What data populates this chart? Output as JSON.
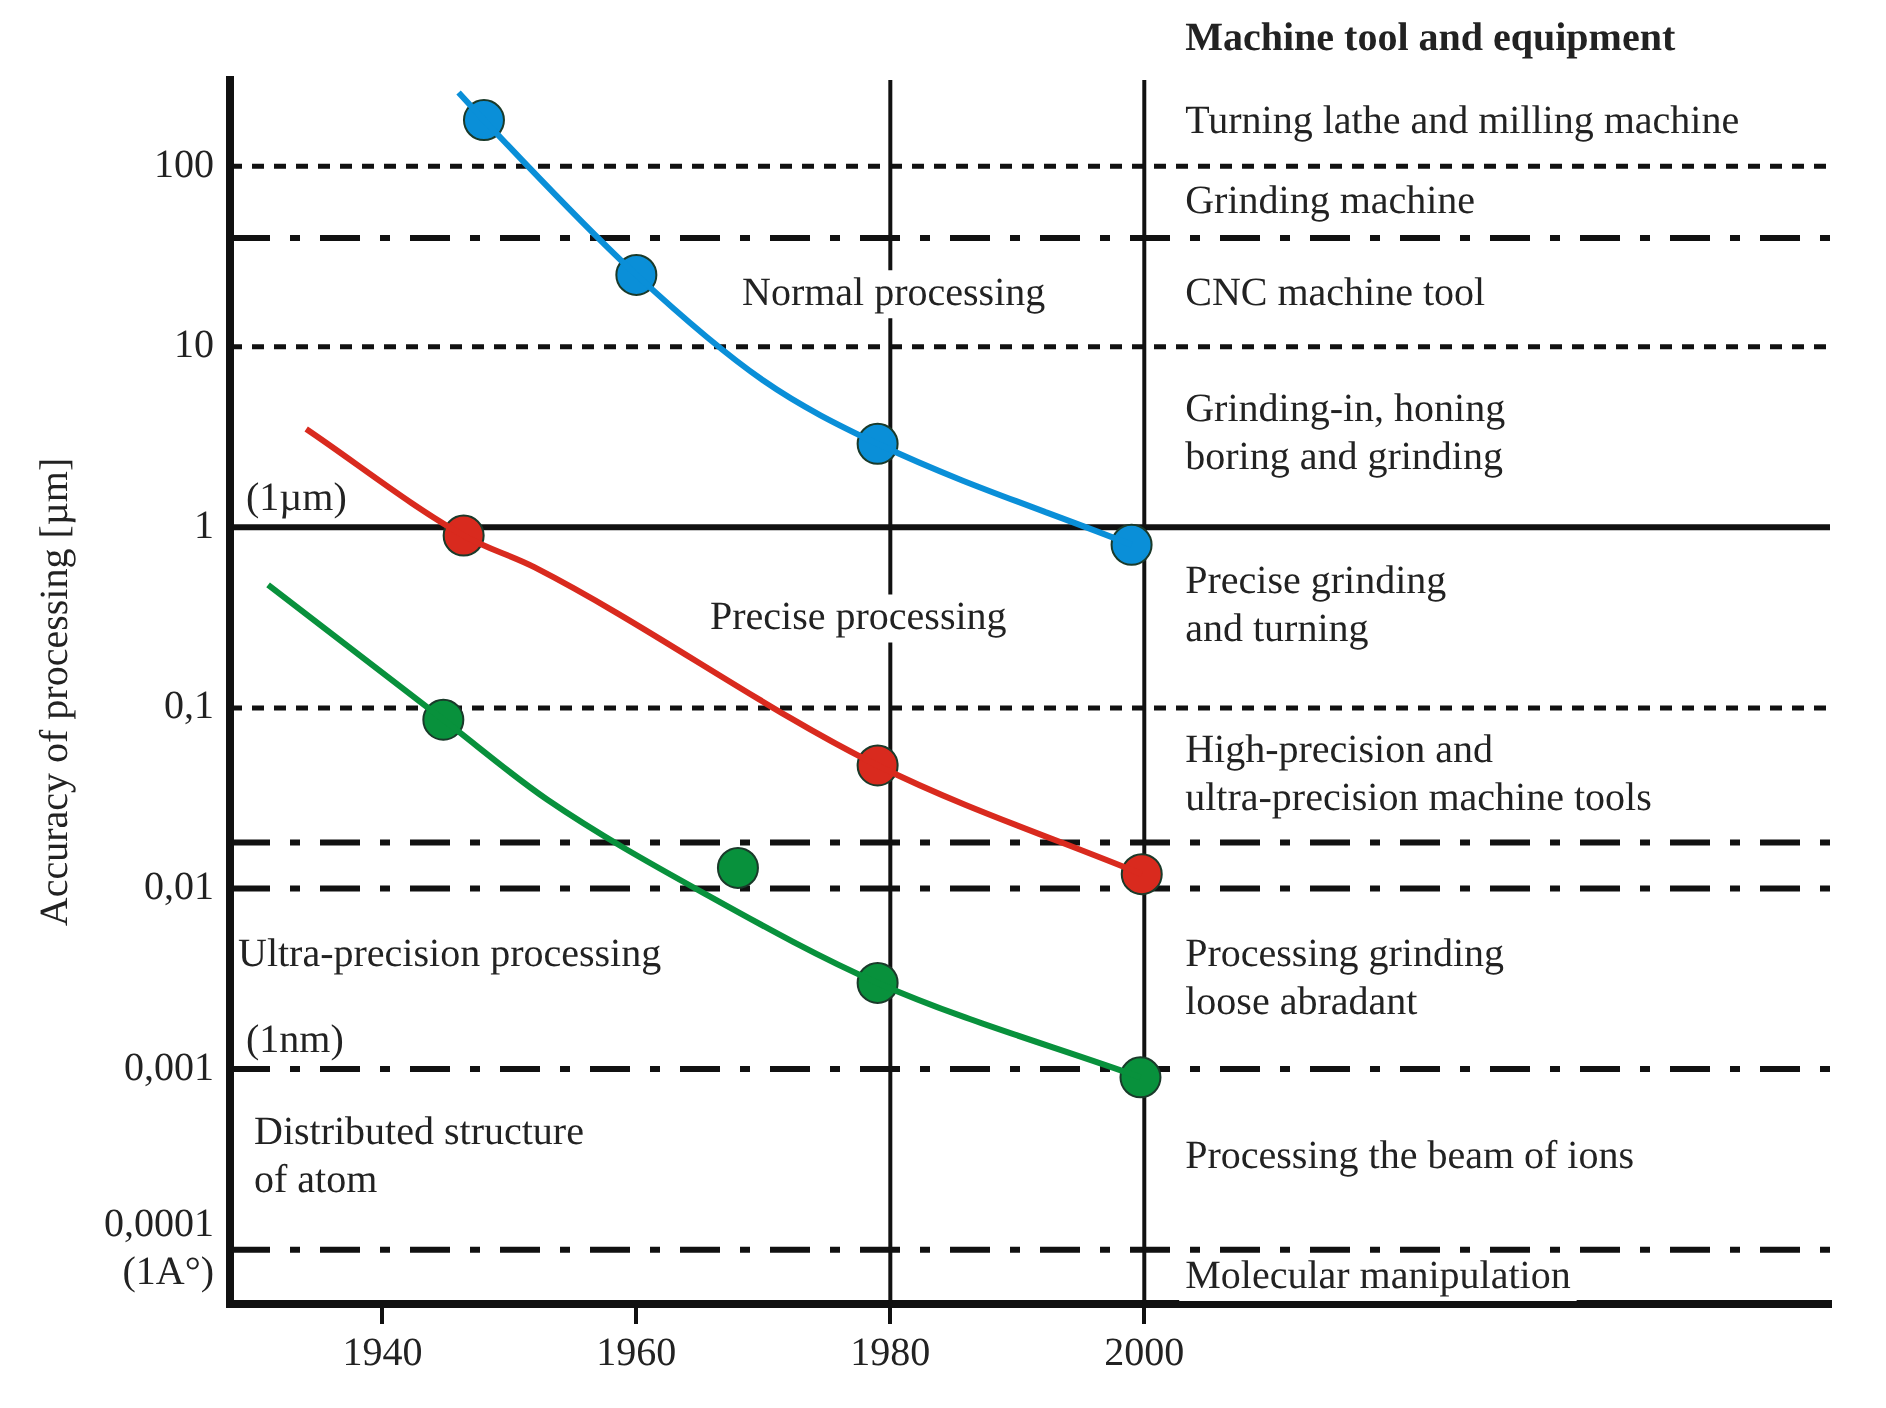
{
  "chart_data": {
    "type": "line",
    "title": "Machine tool and equipment",
    "ylabel": "Accuracy of processing [µm]",
    "log": "y",
    "grid": false,
    "legend": false,
    "xlim": [
      1928,
      2054
    ],
    "xticks": [
      1940,
      1960,
      1980,
      2000
    ],
    "ylim": [
      5e-05,
      300
    ],
    "yticks": [
      {
        "value": 100,
        "label": "100"
      },
      {
        "value": 10,
        "label": "10"
      },
      {
        "value": 1,
        "label": "1"
      },
      {
        "value": 0.1,
        "label": "0,1"
      },
      {
        "value": 0.01,
        "label": "0,01"
      },
      {
        "value": 0.001,
        "label": "0,001"
      },
      {
        "value": 0.0001,
        "label": "0,0001\n(1A°)"
      }
    ],
    "series": [
      {
        "type": "line",
        "marker": "none",
        "color": "#0a8fd8",
        "x": [
          1946,
          1948,
          1960,
          1970,
          1979,
          1999
        ],
        "values": [
          256,
          180,
          25,
          6.5,
          2.9,
          0.8
        ]
      },
      {
        "type": "line",
        "marker": "none",
        "color": "#d92a1e",
        "x": [
          1934,
          1946.4,
          1952,
          1979,
          1999.8
        ],
        "values": [
          3.5,
          0.9,
          0.6,
          0.048,
          0.012
        ]
      },
      {
        "type": "line",
        "marker": "none",
        "color": "#08913c",
        "x": [
          1931,
          1944.8,
          1953,
          1965.7,
          1979,
          1999.7
        ],
        "values": [
          0.48,
          0.086,
          0.031,
          0.0091,
          0.003,
          0.0009
        ]
      },
      {
        "type": "scatter",
        "marker": "circle",
        "color": "#0a8fd8",
        "x": [
          1948,
          1960,
          1979,
          1999
        ],
        "values": [
          180,
          25,
          2.9,
          0.8
        ]
      },
      {
        "type": "scatter",
        "marker": "circle",
        "color": "#d92a1e",
        "x": [
          1946.4,
          1979,
          1999.8
        ],
        "values": [
          0.9,
          0.048,
          0.012
        ]
      },
      {
        "type": "scatter",
        "marker": "circle",
        "color": "#08913c",
        "x": [
          1944.8,
          1968,
          1979,
          1999.7
        ],
        "values": [
          0.086,
          0.013,
          0.003,
          0.0009
        ]
      }
    ],
    "ref_lines": [
      {
        "axis": "y",
        "value": 100,
        "line_style": "dotted"
      },
      {
        "axis": "y",
        "value": 40,
        "line_style": "dashed"
      },
      {
        "axis": "y",
        "value": 10,
        "line_style": "dotted"
      },
      {
        "axis": "y",
        "value": 1,
        "line_style": "solid",
        "label": "(1µm)"
      },
      {
        "axis": "y",
        "value": 0.1,
        "line_style": "dotted"
      },
      {
        "axis": "y",
        "value": 0.018,
        "line_style": "dashed"
      },
      {
        "axis": "y",
        "value": 0.01,
        "line_style": "dashed"
      },
      {
        "axis": "y",
        "value": 0.001,
        "line_style": "dashed",
        "label": "(1nm)"
      },
      {
        "axis": "y",
        "value": 0.0001,
        "line_style": "dashed"
      },
      {
        "axis": "x",
        "value": 1980,
        "line_style": "solid"
      },
      {
        "axis": "x",
        "value": 2000,
        "line_style": "solid"
      }
    ],
    "annotations": [
      "Normal processing",
      "Precise processing",
      "Ultra-precision processing",
      "Distributed structure\nof atom",
      "Turning lathe and milling machine",
      "Grinding machine",
      "CNC machine tool",
      "Grinding-in, honing\nboring and grinding",
      "Precise grinding\nand turning",
      "High-precision and\nultra-precision machine tools",
      "Processing grinding\nloose abradant",
      "Processing the beam of ions",
      "Molecular manipulation"
    ]
  }
}
